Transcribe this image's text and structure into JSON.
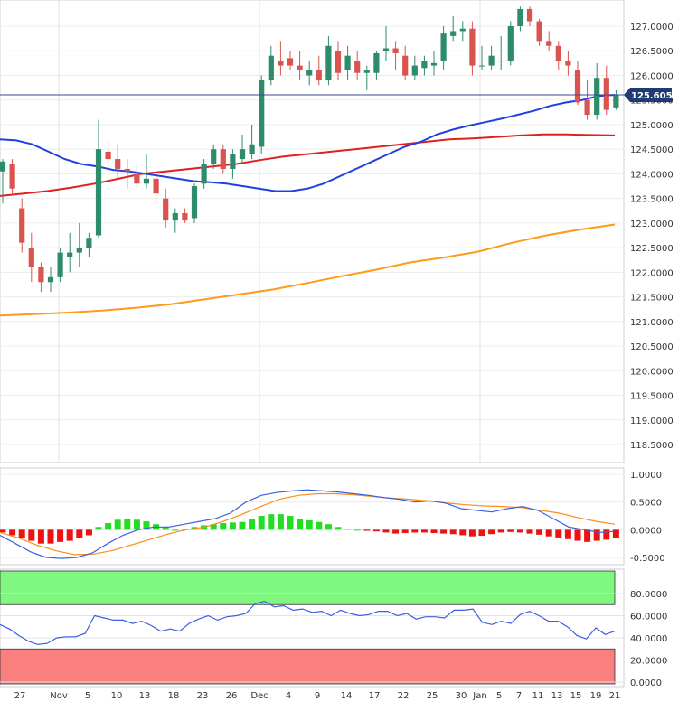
{
  "chart_data": [
    {
      "type": "candlestick",
      "panel": "price",
      "y_ticks": [
        "127.0000",
        "126.5000",
        "126.0000",
        "125.5000",
        "125.0000",
        "124.5000",
        "124.0000",
        "123.5000",
        "123.0000",
        "122.5000",
        "122.0000",
        "121.5000",
        "121.0000",
        "120.5000",
        "120.0000",
        "119.5000",
        "119.0000",
        "118.5000"
      ],
      "ylim": [
        118.3,
        127.5
      ],
      "last_price_label": "125.6050",
      "last_price": 125.605,
      "colors": {
        "up": "#2e8b6b",
        "down": "#d9534f",
        "ma_blue": "#2040e0",
        "ma_red": "#e02020",
        "ma_orange": "#ff9a1a",
        "last_price_line": "#3b4a8c"
      },
      "candles": [
        {
          "o": 124.05,
          "h": 124.3,
          "l": 123.4,
          "c": 124.25
        },
        {
          "o": 124.2,
          "h": 124.3,
          "l": 123.6,
          "c": 123.7
        },
        {
          "o": 123.3,
          "h": 123.5,
          "l": 122.4,
          "c": 122.6
        },
        {
          "o": 122.5,
          "h": 122.8,
          "l": 121.8,
          "c": 122.1
        },
        {
          "o": 122.1,
          "h": 122.2,
          "l": 121.6,
          "c": 121.8
        },
        {
          "o": 121.8,
          "h": 122.1,
          "l": 121.6,
          "c": 121.9
        },
        {
          "o": 121.9,
          "h": 122.5,
          "l": 121.8,
          "c": 122.4
        },
        {
          "o": 122.3,
          "h": 122.8,
          "l": 122.0,
          "c": 122.4
        },
        {
          "o": 122.4,
          "h": 123.0,
          "l": 122.1,
          "c": 122.5
        },
        {
          "o": 122.5,
          "h": 122.8,
          "l": 122.3,
          "c": 122.7
        },
        {
          "o": 122.75,
          "h": 125.1,
          "l": 122.7,
          "c": 124.5
        },
        {
          "o": 124.45,
          "h": 124.7,
          "l": 124.1,
          "c": 124.3
        },
        {
          "o": 124.3,
          "h": 124.6,
          "l": 123.9,
          "c": 124.1
        },
        {
          "o": 124.1,
          "h": 124.3,
          "l": 123.7,
          "c": 124.05
        },
        {
          "o": 124.0,
          "h": 124.2,
          "l": 123.7,
          "c": 123.8
        },
        {
          "o": 123.8,
          "h": 124.4,
          "l": 123.7,
          "c": 123.9
        },
        {
          "o": 123.9,
          "h": 124.0,
          "l": 123.4,
          "c": 123.6
        },
        {
          "o": 123.5,
          "h": 123.7,
          "l": 122.9,
          "c": 123.05
        },
        {
          "o": 123.05,
          "h": 123.3,
          "l": 122.8,
          "c": 123.2
        },
        {
          "o": 123.2,
          "h": 123.3,
          "l": 123.0,
          "c": 123.05
        },
        {
          "o": 123.1,
          "h": 123.8,
          "l": 123.0,
          "c": 123.75
        },
        {
          "o": 123.8,
          "h": 124.3,
          "l": 123.7,
          "c": 124.2
        },
        {
          "o": 124.2,
          "h": 124.6,
          "l": 124.1,
          "c": 124.5
        },
        {
          "o": 124.5,
          "h": 124.6,
          "l": 124.0,
          "c": 124.1
        },
        {
          "o": 124.1,
          "h": 124.5,
          "l": 123.9,
          "c": 124.4
        },
        {
          "o": 124.3,
          "h": 124.8,
          "l": 124.2,
          "c": 124.5
        },
        {
          "o": 124.4,
          "h": 125.0,
          "l": 124.3,
          "c": 124.6
        },
        {
          "o": 124.55,
          "h": 126.0,
          "l": 124.4,
          "c": 125.9
        },
        {
          "o": 125.9,
          "h": 126.6,
          "l": 125.8,
          "c": 126.4
        },
        {
          "o": 126.3,
          "h": 126.7,
          "l": 126.0,
          "c": 126.2
        },
        {
          "o": 126.35,
          "h": 126.5,
          "l": 126.1,
          "c": 126.2
        },
        {
          "o": 126.2,
          "h": 126.5,
          "l": 125.9,
          "c": 126.1
        },
        {
          "o": 126.0,
          "h": 126.3,
          "l": 125.8,
          "c": 126.1
        },
        {
          "o": 126.1,
          "h": 126.4,
          "l": 125.8,
          "c": 125.9
        },
        {
          "o": 125.9,
          "h": 126.8,
          "l": 125.8,
          "c": 126.6
        },
        {
          "o": 126.5,
          "h": 126.7,
          "l": 125.9,
          "c": 126.05
        },
        {
          "o": 126.1,
          "h": 126.6,
          "l": 125.9,
          "c": 126.4
        },
        {
          "o": 126.3,
          "h": 126.5,
          "l": 125.9,
          "c": 126.05
        },
        {
          "o": 126.05,
          "h": 126.2,
          "l": 125.7,
          "c": 126.1
        },
        {
          "o": 126.05,
          "h": 126.5,
          "l": 125.9,
          "c": 126.45
        },
        {
          "o": 126.5,
          "h": 127.0,
          "l": 126.3,
          "c": 126.55
        },
        {
          "o": 126.55,
          "h": 126.7,
          "l": 126.1,
          "c": 126.45
        },
        {
          "o": 126.4,
          "h": 126.6,
          "l": 125.9,
          "c": 126.0
        },
        {
          "o": 126.0,
          "h": 126.4,
          "l": 125.9,
          "c": 126.2
        },
        {
          "o": 126.15,
          "h": 126.4,
          "l": 126.0,
          "c": 126.3
        },
        {
          "o": 126.2,
          "h": 126.5,
          "l": 126.0,
          "c": 126.25
        },
        {
          "o": 126.3,
          "h": 127.0,
          "l": 126.1,
          "c": 126.85
        },
        {
          "o": 126.8,
          "h": 127.2,
          "l": 126.7,
          "c": 126.9
        },
        {
          "o": 126.9,
          "h": 127.1,
          "l": 126.7,
          "c": 126.95
        },
        {
          "o": 126.95,
          "h": 127.1,
          "l": 126.0,
          "c": 126.2
        },
        {
          "o": 126.2,
          "h": 126.6,
          "l": 126.1,
          "c": 126.2
        },
        {
          "o": 126.2,
          "h": 126.6,
          "l": 126.1,
          "c": 126.4
        },
        {
          "o": 126.3,
          "h": 126.8,
          "l": 126.1,
          "c": 126.3
        },
        {
          "o": 126.3,
          "h": 127.1,
          "l": 126.2,
          "c": 127.0
        },
        {
          "o": 127.0,
          "h": 127.4,
          "l": 126.9,
          "c": 127.35
        },
        {
          "o": 127.35,
          "h": 127.4,
          "l": 127.0,
          "c": 127.1
        },
        {
          "o": 127.1,
          "h": 127.15,
          "l": 126.6,
          "c": 126.7
        },
        {
          "o": 126.7,
          "h": 126.9,
          "l": 126.5,
          "c": 126.6
        },
        {
          "o": 126.6,
          "h": 126.7,
          "l": 126.1,
          "c": 126.3
        },
        {
          "o": 126.3,
          "h": 126.5,
          "l": 126.0,
          "c": 126.2
        },
        {
          "o": 126.1,
          "h": 126.3,
          "l": 125.4,
          "c": 125.45
        },
        {
          "o": 125.5,
          "h": 125.9,
          "l": 125.1,
          "c": 125.2
        },
        {
          "o": 125.2,
          "h": 126.25,
          "l": 125.1,
          "c": 125.95
        },
        {
          "o": 125.95,
          "h": 126.2,
          "l": 125.2,
          "c": 125.3
        },
        {
          "o": 125.35,
          "h": 125.7,
          "l": 125.3,
          "c": 125.605
        }
      ],
      "ma_blue": [
        124.7,
        124.68,
        124.6,
        124.45,
        124.3,
        124.2,
        124.15,
        124.08,
        124.05,
        124.0,
        123.95,
        123.9,
        123.85,
        123.83,
        123.8,
        123.75,
        123.7,
        123.65,
        123.65,
        123.7,
        123.8,
        123.95,
        124.1,
        124.25,
        124.4,
        124.55,
        124.65,
        124.8,
        124.9,
        124.98,
        125.05,
        125.12,
        125.2,
        125.28,
        125.38,
        125.45,
        125.5,
        125.58,
        125.605
      ],
      "ma_blue_start": 0,
      "ma_blue_step": 1.7,
      "ma_red": [
        123.55,
        123.6,
        123.65,
        123.72,
        123.8,
        123.9,
        124.0,
        124.05,
        124.1,
        124.15,
        124.2,
        124.28,
        124.35,
        124.4,
        124.45,
        124.5,
        124.55,
        124.6,
        124.65,
        124.7,
        124.72,
        124.75,
        124.78,
        124.8,
        124.8,
        124.79,
        124.78
      ],
      "ma_orange": [
        121.12,
        121.15,
        121.18,
        121.22,
        121.28,
        121.35,
        121.45,
        121.55,
        121.65,
        121.78,
        121.92,
        122.05,
        122.2,
        122.3,
        122.42,
        122.6,
        122.75,
        122.87,
        122.97
      ]
    },
    {
      "type": "macd",
      "panel": "macd",
      "y_ticks": [
        "1.0000",
        "0.5000",
        "0.0000",
        "-0.5000"
      ],
      "ylim": [
        -0.6,
        1.05
      ],
      "histogram": [
        -0.05,
        -0.1,
        -0.15,
        -0.2,
        -0.25,
        -0.25,
        -0.22,
        -0.2,
        -0.15,
        -0.1,
        0.05,
        0.12,
        0.18,
        0.2,
        0.18,
        0.15,
        0.1,
        0.05,
        0.0,
        0.02,
        0.05,
        0.08,
        0.1,
        0.12,
        0.13,
        0.14,
        0.2,
        0.25,
        0.28,
        0.28,
        0.25,
        0.2,
        0.17,
        0.14,
        0.1,
        0.05,
        0.02,
        0.0,
        -0.02,
        -0.03,
        -0.05,
        -0.07,
        -0.06,
        -0.05,
        -0.05,
        -0.06,
        -0.07,
        -0.08,
        -0.1,
        -0.12,
        -0.11,
        -0.08,
        -0.05,
        -0.04,
        -0.05,
        -0.07,
        -0.09,
        -0.12,
        -0.14,
        -0.17,
        -0.2,
        -0.22,
        -0.2,
        -0.18,
        -0.15
      ],
      "macd_line": [
        -0.1,
        -0.25,
        -0.4,
        -0.5,
        -0.52,
        -0.5,
        -0.42,
        -0.25,
        -0.1,
        0.0,
        0.05,
        0.05,
        0.1,
        0.15,
        0.2,
        0.3,
        0.5,
        0.62,
        0.67,
        0.7,
        0.72,
        0.7,
        0.68,
        0.65,
        0.62,
        0.58,
        0.55,
        0.5,
        0.52,
        0.48,
        0.38,
        0.35,
        0.32,
        0.38,
        0.42,
        0.35,
        0.2,
        0.05,
        0.0,
        -0.05,
        -0.03
      ],
      "signal_line": [
        -0.05,
        -0.15,
        -0.28,
        -0.38,
        -0.45,
        -0.44,
        -0.38,
        -0.28,
        -0.18,
        -0.08,
        0.0,
        0.05,
        0.15,
        0.28,
        0.42,
        0.55,
        0.62,
        0.65,
        0.65,
        0.63,
        0.6,
        0.57,
        0.55,
        0.52,
        0.48,
        0.45,
        0.43,
        0.42,
        0.4,
        0.35,
        0.3,
        0.22,
        0.15,
        0.1
      ]
    },
    {
      "type": "rsi",
      "panel": "rsi",
      "y_ticks": [
        "80.0000",
        "60.0000",
        "40.0000",
        "20.0000",
        "0.0000"
      ],
      "ylim": [
        0,
        100
      ],
      "overbought_zone": [
        70,
        100
      ],
      "oversold_zone": [
        0,
        30
      ],
      "rsi_line": [
        52,
        48,
        42,
        37,
        34,
        35,
        40,
        41,
        41,
        44,
        60,
        58,
        56,
        56,
        53,
        55,
        51,
        46,
        48,
        46,
        53,
        57,
        60,
        56,
        59,
        60,
        62,
        71,
        73,
        68,
        69,
        65,
        66,
        63,
        64,
        60,
        65,
        62,
        60,
        61,
        64,
        64,
        60,
        62,
        57,
        59,
        59,
        58,
        65,
        65,
        66,
        54,
        52,
        55,
        53,
        61,
        64,
        60,
        55,
        55,
        50,
        42,
        39,
        49,
        43,
        46
      ],
      "colors": {
        "overbought": "#80f880",
        "oversold": "#fa7f7f",
        "line": "#3b5fe0"
      }
    }
  ],
  "x_axis": {
    "labels": [
      "27",
      "Nov",
      "5",
      "10",
      "13",
      "18",
      "23",
      "26",
      "Dec",
      "4",
      "9",
      "14",
      "17",
      "22",
      "25",
      "30",
      "Jan",
      "5",
      "7",
      "11",
      "13",
      "15",
      "19",
      "21"
    ]
  }
}
